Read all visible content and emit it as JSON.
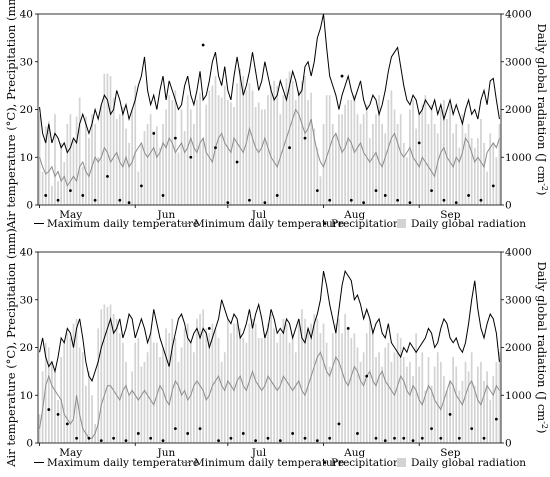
{
  "chart_data": [
    {
      "type": "line",
      "panel": "top",
      "ylabel_left": "Air temperature (°C), Precipitation (mm)",
      "ylabel_right": "Daily global radiation (J cm",
      "ylabel_right_sup": "-2",
      "ylabel_right_close": ")",
      "ylim_left": [
        0,
        40
      ],
      "ylim_right": [
        0,
        4000
      ],
      "yticks_left": [
        "0",
        "10",
        "20",
        "30",
        "40"
      ],
      "yticks_right": [
        "0",
        "1000",
        "2000",
        "3000",
        "4000"
      ],
      "months": [
        "May",
        "Jun",
        "Jul",
        "Aug",
        "Sep"
      ],
      "x_range_days": 150,
      "legend": {
        "tmax": "Maximum daily temperature",
        "tmin": "Minimum daily temperature",
        "precip": "Precipitation",
        "rad": "Daily global radiation"
      },
      "tmax": [
        20.5,
        15,
        13,
        17,
        13,
        15,
        14,
        12,
        13,
        11,
        12,
        14,
        13,
        17,
        19,
        17,
        15,
        17,
        20,
        18,
        21,
        23,
        22,
        19,
        20,
        24,
        22,
        19,
        21,
        18,
        20,
        22,
        25,
        27,
        31,
        24,
        21,
        23,
        20,
        24,
        27,
        22,
        26,
        24,
        22,
        20,
        21,
        25,
        27,
        23,
        21,
        24,
        28,
        22,
        23,
        26,
        30,
        32,
        27,
        25,
        29,
        24,
        22,
        27,
        31,
        27,
        23,
        25,
        28,
        32,
        28,
        24,
        26,
        30,
        27,
        24,
        22,
        23,
        26,
        24,
        22,
        25,
        28,
        26,
        23,
        24,
        29,
        30,
        27,
        30,
        35,
        37,
        40,
        33,
        27,
        25,
        23,
        20,
        23,
        25,
        27,
        24,
        22,
        24,
        26,
        22,
        20,
        21,
        23,
        22,
        19,
        21,
        24,
        28,
        31,
        32,
        33,
        29,
        25,
        22,
        21,
        23,
        22,
        19,
        20,
        22,
        21,
        20,
        22,
        19,
        21,
        18,
        20,
        22,
        19,
        21,
        19,
        17,
        20,
        22,
        19,
        20,
        18,
        22,
        24,
        21,
        26,
        26.5,
        22,
        18
      ],
      "tmin": [
        10,
        8,
        6.5,
        7,
        8,
        6,
        7,
        5,
        6,
        4,
        5,
        6,
        5,
        8,
        9,
        7,
        6,
        8,
        10,
        9,
        10,
        12,
        11,
        9,
        10,
        11,
        9,
        8,
        10,
        8,
        9,
        11,
        12,
        13,
        11,
        10,
        11,
        12,
        10,
        11,
        13,
        12,
        14,
        13,
        11,
        12,
        13,
        11,
        12,
        14,
        12,
        11,
        13,
        14,
        11,
        10,
        9,
        12,
        14,
        15,
        13,
        12,
        11,
        14,
        13,
        12,
        11,
        13,
        16,
        14,
        12,
        11,
        12,
        14,
        12,
        10,
        9,
        8,
        10,
        12,
        14,
        16,
        18,
        20,
        19,
        17,
        15,
        16,
        18,
        14,
        11,
        9,
        8,
        10,
        12,
        14,
        15,
        13,
        11,
        12,
        14,
        13,
        11,
        12,
        13,
        11,
        10,
        9,
        10,
        11,
        9,
        8,
        10,
        12,
        14,
        15,
        13,
        11,
        10,
        11,
        12,
        10,
        9,
        8,
        10,
        9,
        8,
        7,
        6,
        9,
        11,
        12,
        10,
        9,
        8,
        10,
        9,
        11,
        14,
        13,
        11,
        9,
        10,
        9,
        8,
        11,
        12,
        13,
        12,
        14
      ],
      "rad": [
        1900,
        700,
        1650,
        1750,
        400,
        1900,
        500,
        1300,
        900,
        1700,
        1900,
        1350,
        1850,
        2250,
        800,
        1850,
        1400,
        1900,
        1700,
        1000,
        2100,
        2750,
        2750,
        2700,
        2250,
        1800,
        1900,
        2050,
        1600,
        1300,
        2000,
        2500,
        700,
        1250,
        1550,
        1700,
        1900,
        1550,
        1650,
        1200,
        1700,
        2000,
        2300,
        2200,
        2400,
        1100,
        2000,
        1550,
        2300,
        2000,
        1700,
        2200,
        2350,
        1400,
        2100,
        2400,
        2500,
        2700,
        2300,
        2250,
        2500,
        2200,
        2150,
        2050,
        2550,
        2850,
        2700,
        2400,
        2550,
        2400,
        2050,
        2150,
        2000,
        2000,
        2300,
        2500,
        2600,
        2500,
        1900,
        2300,
        2650,
        2800,
        2600,
        2200,
        2400,
        2600,
        2700,
        2200,
        2350,
        1600,
        1200,
        600,
        1700,
        2300,
        2300,
        1700,
        1500,
        1900,
        1900,
        2100,
        2200,
        2200,
        2300,
        1900,
        1700,
        1900,
        2100,
        1400,
        1700,
        1900,
        2300,
        1700,
        1500,
        2200,
        2400,
        2000,
        1700,
        1900,
        1300,
        1000,
        2000,
        2200,
        1600,
        1900,
        2100,
        2300,
        1700,
        2100,
        1700,
        1500,
        2000,
        2200,
        1800,
        2100,
        1500,
        1700,
        1200,
        1900,
        1500,
        1700,
        1400,
        1200,
        1400,
        1800,
        1300,
        700,
        1500,
        1300,
        1000,
        1700
      ],
      "precip": [
        [
          2,
          2
        ],
        [
          6,
          1
        ],
        [
          10,
          3
        ],
        [
          14,
          2
        ],
        [
          18,
          1
        ],
        [
          22,
          6
        ],
        [
          26,
          1
        ],
        [
          29,
          0.5
        ],
        [
          33,
          4
        ],
        [
          37,
          15
        ],
        [
          40,
          2
        ],
        [
          44,
          14
        ],
        [
          49,
          10
        ],
        [
          53,
          33.5
        ],
        [
          57,
          12
        ],
        [
          61,
          0.5
        ],
        [
          64,
          9
        ],
        [
          68,
          1
        ],
        [
          73,
          0.5
        ],
        [
          77,
          2
        ],
        [
          81,
          12
        ],
        [
          86,
          14
        ],
        [
          90,
          3
        ],
        [
          94,
          1
        ],
        [
          98,
          27
        ],
        [
          101,
          1
        ],
        [
          105,
          0.5
        ],
        [
          109,
          3
        ],
        [
          112,
          2
        ],
        [
          116,
          1
        ],
        [
          120,
          0.5
        ],
        [
          123,
          13
        ],
        [
          127,
          3
        ],
        [
          131,
          1
        ],
        [
          135,
          0.5
        ],
        [
          139,
          2
        ],
        [
          143,
          1
        ],
        [
          147,
          4
        ]
      ]
    },
    {
      "type": "line",
      "panel": "bottom",
      "ylabel_left": "Air temperature (°C), Precipitation (mm)",
      "ylabel_right": "Daily global radiation (J cm",
      "ylabel_right_sup": "-2",
      "ylabel_right_close": ")",
      "ylim_left": [
        0,
        40
      ],
      "ylim_right": [
        0,
        4000
      ],
      "yticks_left": [
        "0",
        "10",
        "20",
        "30",
        "40"
      ],
      "yticks_right": [
        "0",
        "1000",
        "2000",
        "3000",
        "4000"
      ],
      "months": [
        "May",
        "Jun",
        "Jul",
        "Aug",
        "Sep"
      ],
      "x_range_days": 150,
      "legend": {
        "tmax": "Maximum daily temperature",
        "tmin": "Minimum daily temperature",
        "precip": "Precipitation",
        "rad": "Daily global radiation"
      },
      "tmax": [
        19,
        22,
        18,
        16,
        17,
        15,
        18,
        22,
        21,
        24,
        23,
        20,
        24,
        26,
        22,
        17,
        14,
        13,
        15,
        17,
        20,
        22,
        24,
        26,
        23,
        24,
        26,
        22,
        24,
        27,
        26,
        22,
        24,
        26,
        24,
        21,
        23,
        28,
        25,
        22,
        20,
        18,
        16,
        20,
        23,
        26,
        27,
        25,
        22,
        21,
        23,
        24,
        22,
        24,
        23,
        20,
        22,
        24,
        26,
        30,
        28,
        26,
        25,
        27,
        26,
        22,
        23,
        25,
        28,
        24,
        27,
        29,
        26,
        22,
        24,
        28,
        26,
        23,
        24,
        23,
        26,
        25,
        22,
        24,
        26,
        22,
        21,
        24,
        22,
        25,
        27,
        30,
        36,
        33,
        29,
        26,
        23,
        28,
        33,
        36,
        35,
        34,
        30,
        31,
        29,
        26,
        28,
        26,
        23,
        25,
        26,
        23,
        22,
        25,
        21,
        20,
        19,
        18,
        20,
        19,
        21,
        20,
        19,
        20,
        21,
        22,
        24,
        23,
        20,
        21,
        24,
        26,
        25,
        22,
        21,
        22,
        20,
        19,
        21,
        25,
        30,
        34,
        28,
        24,
        22,
        25,
        27,
        26,
        23,
        17
      ],
      "tmin": [
        3,
        7,
        12,
        14,
        12,
        11,
        10,
        9,
        6,
        5,
        4,
        5,
        10,
        6,
        3,
        2,
        1,
        1,
        2,
        4,
        8,
        10,
        12,
        12,
        11,
        10,
        9,
        11,
        12,
        10,
        11,
        10,
        9,
        10,
        11,
        10,
        9,
        8,
        10,
        12,
        11,
        9,
        8,
        11,
        13,
        12,
        10,
        11,
        9,
        10,
        12,
        13,
        12,
        11,
        9,
        10,
        12,
        13,
        14,
        12,
        11,
        13,
        12,
        11,
        13,
        14,
        12,
        11,
        13,
        15,
        13,
        12,
        11,
        12,
        14,
        13,
        12,
        11,
        12,
        14,
        13,
        12,
        11,
        12,
        13,
        11,
        10,
        12,
        14,
        16,
        18,
        19,
        17,
        15,
        14,
        16,
        18,
        17,
        15,
        13,
        12,
        14,
        16,
        15,
        13,
        12,
        14,
        15,
        13,
        12,
        14,
        15,
        13,
        12,
        11,
        10,
        12,
        14,
        13,
        11,
        10,
        12,
        11,
        9,
        8,
        10,
        12,
        11,
        9,
        8,
        7,
        9,
        11,
        13,
        12,
        10,
        9,
        8,
        10,
        12,
        13,
        11,
        9,
        8,
        10,
        12,
        11,
        10,
        12,
        11
      ],
      "rad": [
        600,
        1500,
        2100,
        2000,
        1700,
        1500,
        900,
        1800,
        2100,
        2300,
        2200,
        2500,
        2600,
        2000,
        1900,
        1200,
        1500,
        1000,
        400,
        2400,
        2800,
        2900,
        2850,
        2900,
        2700,
        2600,
        2300,
        2100,
        1700,
        1000,
        1500,
        2100,
        2200,
        1600,
        1700,
        1900,
        2300,
        2100,
        2100,
        1800,
        2000,
        2400,
        2300,
        2600,
        2200,
        1700,
        2000,
        2400,
        2500,
        2100,
        1900,
        2600,
        2700,
        2800,
        2400,
        2300,
        2500,
        2400,
        2200,
        1700,
        1900,
        2600,
        2300,
        2500,
        2500,
        2400,
        2200,
        2100,
        2500,
        2600,
        2500,
        2200,
        2200,
        2300,
        2500,
        2700,
        2400,
        2100,
        2300,
        2600,
        2500,
        2100,
        2200,
        1900,
        2600,
        2800,
        2600,
        2400,
        2500,
        2700,
        2600,
        2300,
        2500,
        2100,
        1600,
        2300,
        2500,
        2600,
        2300,
        2700,
        2400,
        2200,
        2300,
        2000,
        1700,
        1900,
        2300,
        2600,
        2400,
        1800,
        1900,
        1600,
        2000,
        2100,
        1700,
        1900,
        2300,
        2200,
        1800,
        1600,
        1700,
        1400,
        2300,
        1600,
        1900,
        1100,
        1800,
        1200,
        1600,
        1900,
        1700,
        1400,
        1100,
        1300,
        1800,
        1600,
        1100,
        1300,
        1700,
        1500,
        1900,
        1200,
        1600,
        1700,
        1300,
        1500,
        900,
        1400,
        1700,
        1900
      ],
      "precip": [
        [
          3,
          7
        ],
        [
          6,
          6
        ],
        [
          9,
          4
        ],
        [
          12,
          1
        ],
        [
          16,
          1
        ],
        [
          20,
          0.5
        ],
        [
          24,
          1
        ],
        [
          28,
          0.5
        ],
        [
          32,
          2
        ],
        [
          36,
          1
        ],
        [
          40,
          0.5
        ],
        [
          44,
          3
        ],
        [
          48,
          2
        ],
        [
          52,
          3
        ],
        [
          55,
          24
        ],
        [
          58,
          0.5
        ],
        [
          62,
          1
        ],
        [
          66,
          2
        ],
        [
          70,
          0.5
        ],
        [
          74,
          1
        ],
        [
          78,
          0.5
        ],
        [
          82,
          2
        ],
        [
          86,
          1
        ],
        [
          90,
          0.5
        ],
        [
          94,
          1
        ],
        [
          97,
          4
        ],
        [
          100,
          24
        ],
        [
          103,
          2
        ],
        [
          106,
          14
        ],
        [
          109,
          1
        ],
        [
          112,
          0.5
        ],
        [
          115,
          1
        ],
        [
          118,
          1
        ],
        [
          121,
          0.5
        ],
        [
          124,
          1
        ],
        [
          127,
          3
        ],
        [
          130,
          1
        ],
        [
          133,
          6
        ],
        [
          136,
          1
        ],
        [
          140,
          3
        ],
        [
          144,
          1
        ],
        [
          148,
          5
        ]
      ]
    }
  ]
}
